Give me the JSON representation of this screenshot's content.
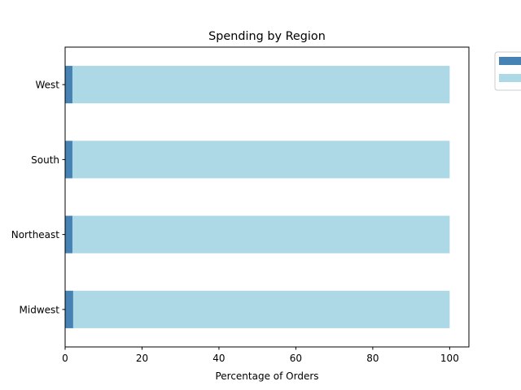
{
  "chart_data": {
    "type": "bar",
    "orientation": "horizontal",
    "stacked": true,
    "title": "Spending by Region",
    "xlabel": "Percentage of Orders",
    "ylabel": "",
    "xlim": [
      0,
      105
    ],
    "xticks": [
      0,
      20,
      40,
      60,
      80,
      100
    ],
    "categories": [
      "Midwest",
      "Northeast",
      "South",
      "West"
    ],
    "series": [
      {
        "values": [
          2.1,
          1.9,
          1.9,
          1.9
        ],
        "color": "#4682b4"
      },
      {
        "values": [
          97.9,
          98.1,
          98.1,
          98.1
        ],
        "color": "#add8e6"
      }
    ],
    "legend": {
      "placement": "outside-top-right",
      "entries": [
        "",
        ""
      ]
    },
    "grid": false
  }
}
